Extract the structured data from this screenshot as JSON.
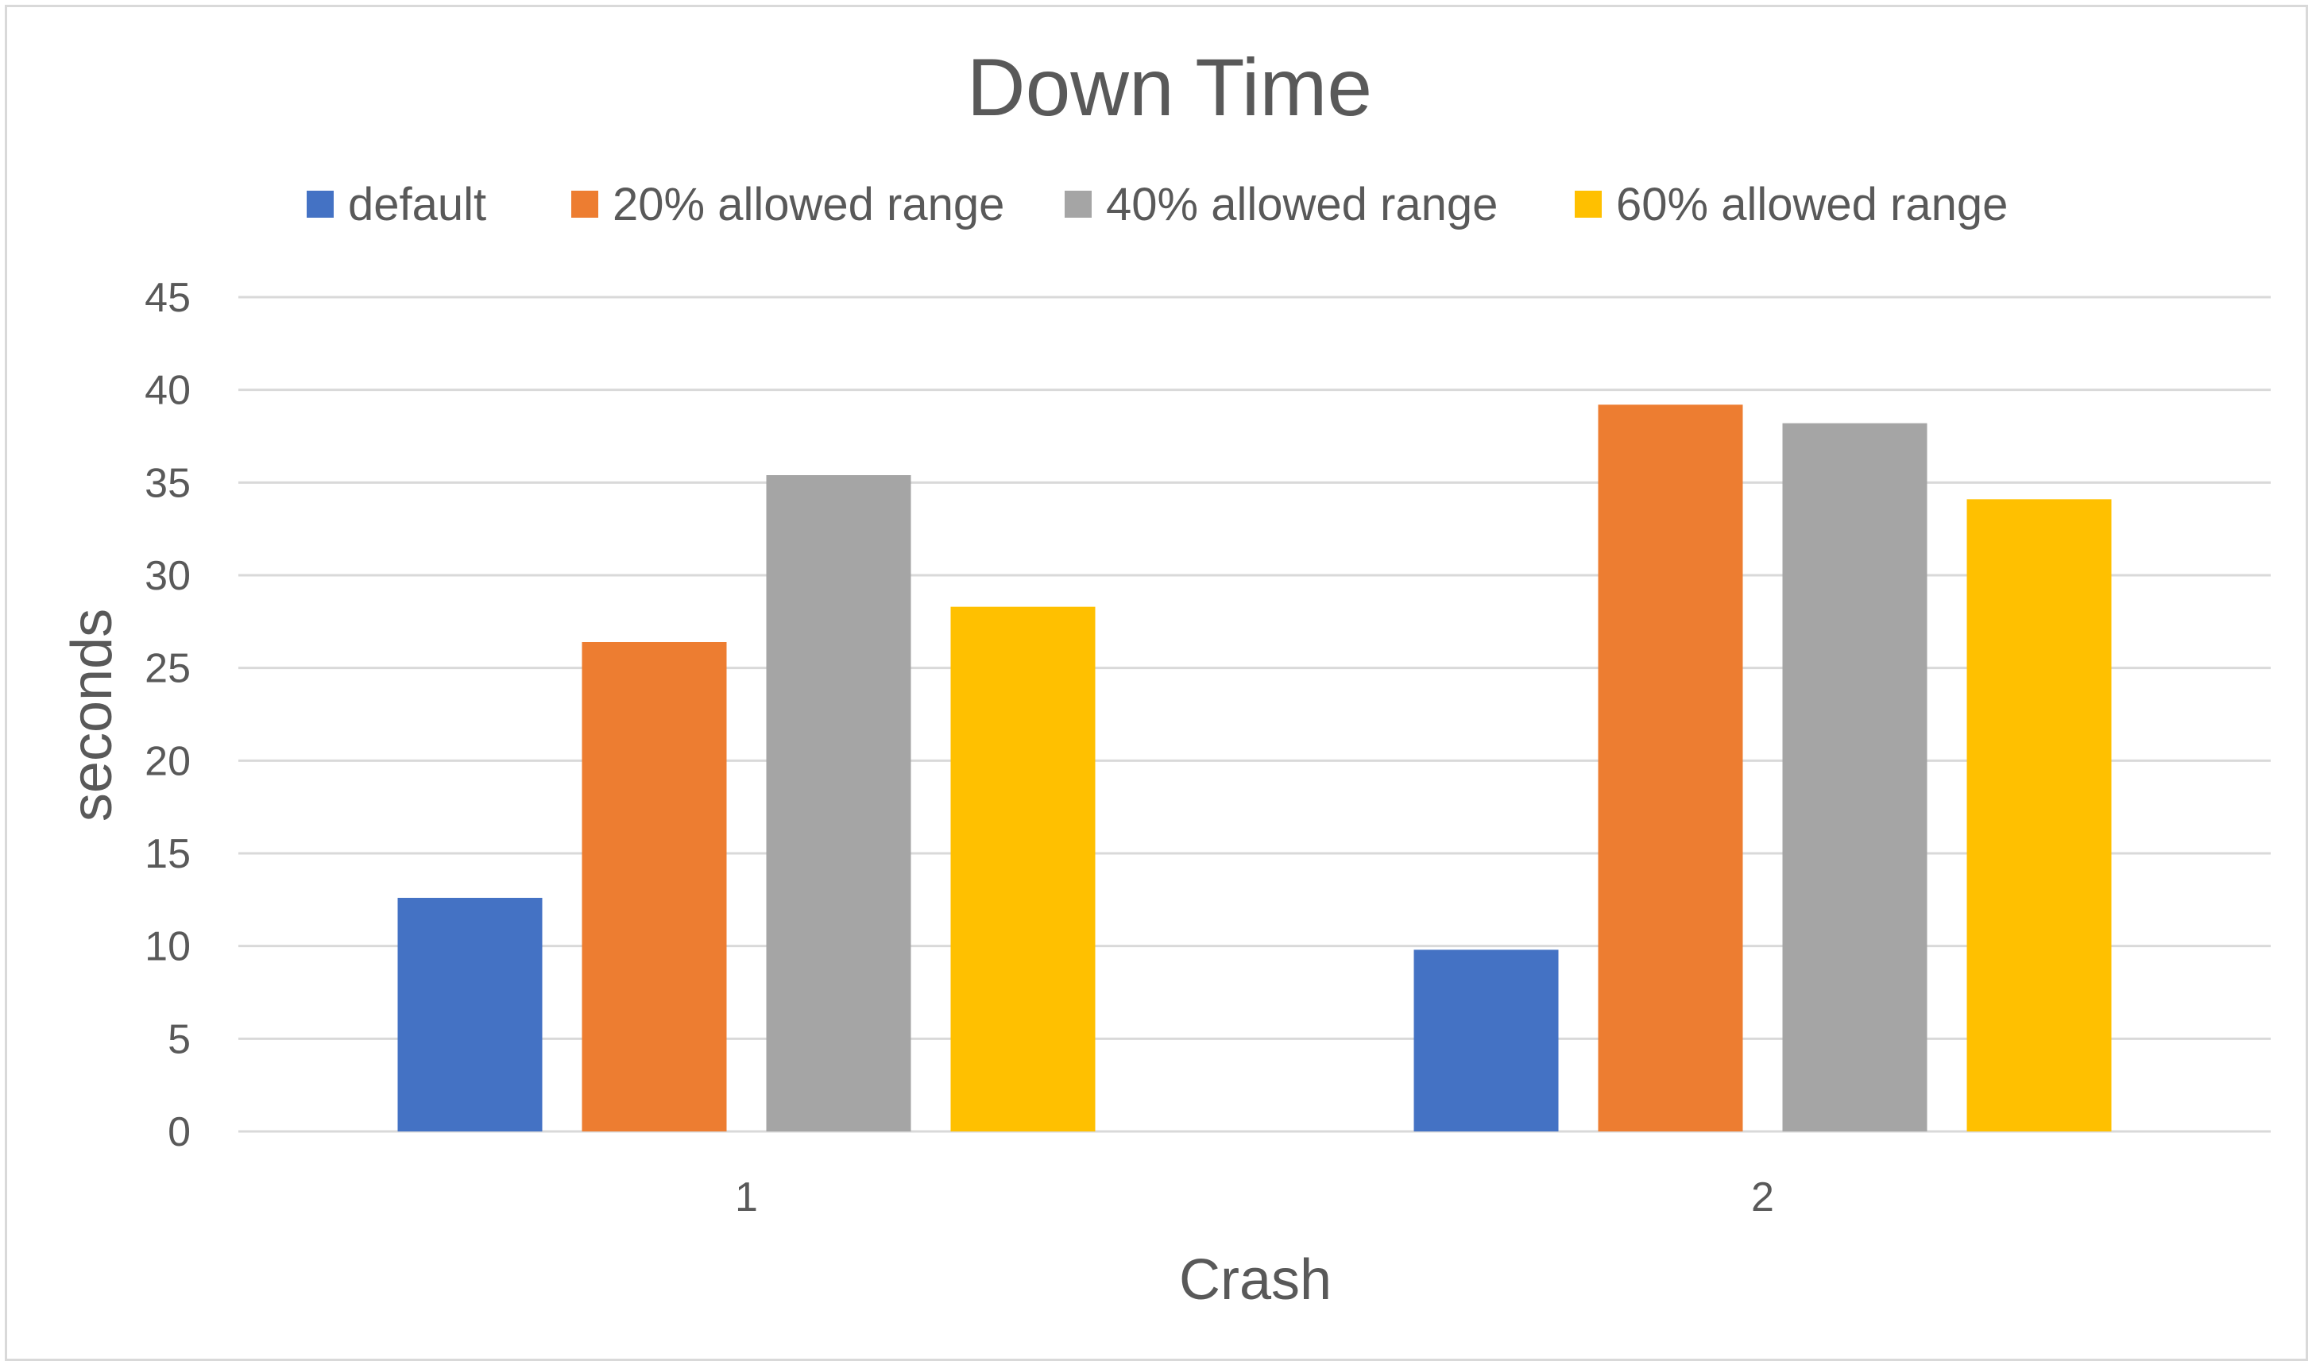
{
  "chart_data": {
    "type": "bar",
    "title": "Down Time",
    "xlabel": "Crash",
    "ylabel": "seconds",
    "categories": [
      "1",
      "2"
    ],
    "series": [
      {
        "name": "default",
        "values": [
          12.6,
          9.8
        ],
        "color": "#4472C4"
      },
      {
        "name": "20% allowed range",
        "values": [
          26.4,
          39.2
        ],
        "color": "#ED7D31"
      },
      {
        "name": "40% allowed range",
        "values": [
          35.4,
          38.2
        ],
        "color": "#A5A5A5"
      },
      {
        "name": "60% allowed range",
        "values": [
          28.3,
          34.1
        ],
        "color": "#FFC000"
      }
    ],
    "ylim": [
      0,
      45
    ],
    "yticks": [
      "0",
      "5",
      "10",
      "15",
      "20",
      "25",
      "30",
      "35",
      "40",
      "45"
    ],
    "grid": true,
    "legend_position": "top"
  }
}
